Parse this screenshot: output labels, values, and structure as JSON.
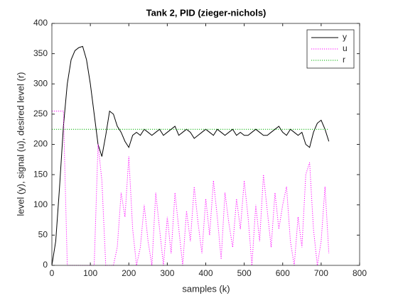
{
  "chart_data": {
    "type": "line",
    "title": "Tank 2, PID (zieger-nichols)",
    "xlabel": "samples (k)",
    "ylabel": "level (y), signal (u), desired level (r)",
    "x": [
      0,
      10,
      20,
      30,
      40,
      50,
      60,
      70,
      80,
      90,
      100,
      110,
      120,
      130,
      140,
      150,
      160,
      170,
      180,
      190,
      200,
      210,
      220,
      230,
      240,
      250,
      260,
      270,
      280,
      290,
      300,
      310,
      320,
      330,
      340,
      350,
      360,
      370,
      380,
      390,
      400,
      410,
      420,
      430,
      440,
      450,
      460,
      470,
      480,
      490,
      500,
      510,
      520,
      530,
      540,
      550,
      560,
      570,
      580,
      590,
      600,
      610,
      620,
      630,
      640,
      650,
      660,
      670,
      680,
      690,
      700,
      710,
      720
    ],
    "series": [
      {
        "name": "y",
        "color": "#000000",
        "style": "solid",
        "values": [
          0,
          40,
          130,
          230,
          300,
          340,
          355,
          360,
          362,
          340,
          300,
          250,
          200,
          180,
          215,
          255,
          250,
          230,
          220,
          205,
          195,
          215,
          220,
          215,
          225,
          220,
          215,
          220,
          225,
          215,
          220,
          225,
          230,
          215,
          220,
          225,
          220,
          210,
          215,
          220,
          225,
          220,
          215,
          225,
          220,
          215,
          220,
          225,
          215,
          220,
          215,
          215,
          220,
          225,
          220,
          215,
          215,
          220,
          225,
          230,
          220,
          215,
          225,
          220,
          215,
          220,
          200,
          195,
          220,
          235,
          240,
          225,
          205
        ]
      },
      {
        "name": "u",
        "color": "#ff00ff",
        "style": "dotted",
        "values": [
          255,
          255,
          255,
          255,
          0,
          0,
          0,
          0,
          0,
          0,
          0,
          0,
          200,
          140,
          0,
          0,
          0,
          30,
          120,
          80,
          180,
          60,
          0,
          30,
          100,
          40,
          0,
          120,
          60,
          0,
          80,
          20,
          120,
          60,
          0,
          90,
          40,
          130,
          70,
          20,
          110,
          50,
          140,
          80,
          10,
          120,
          70,
          30,
          110,
          60,
          140,
          80,
          0,
          100,
          40,
          150,
          90,
          30,
          120,
          60,
          100,
          130,
          40,
          0,
          80,
          30,
          150,
          170,
          60,
          0,
          40,
          130,
          20
        ]
      },
      {
        "name": "r",
        "color": "#00b000",
        "style": "dotted",
        "values": [
          225,
          225,
          225,
          225,
          225,
          225,
          225,
          225,
          225,
          225,
          225,
          225,
          225,
          225,
          225,
          225,
          225,
          225,
          225,
          225,
          225,
          225,
          225,
          225,
          225,
          225,
          225,
          225,
          225,
          225,
          225,
          225,
          225,
          225,
          225,
          225,
          225,
          225,
          225,
          225,
          225,
          225,
          225,
          225,
          225,
          225,
          225,
          225,
          225,
          225,
          225,
          225,
          225,
          225,
          225,
          225,
          225,
          225,
          225,
          225,
          225,
          225,
          225,
          225,
          225,
          225,
          225,
          225,
          225,
          225,
          225,
          225,
          225
        ]
      }
    ],
    "xlim": [
      0,
      800
    ],
    "xticks": [
      0,
      100,
      200,
      300,
      400,
      500,
      600,
      700,
      800
    ],
    "ylim": [
      0,
      400
    ],
    "yticks": [
      0,
      50,
      100,
      150,
      200,
      250,
      300,
      350,
      400
    ],
    "legend": "top-right"
  }
}
